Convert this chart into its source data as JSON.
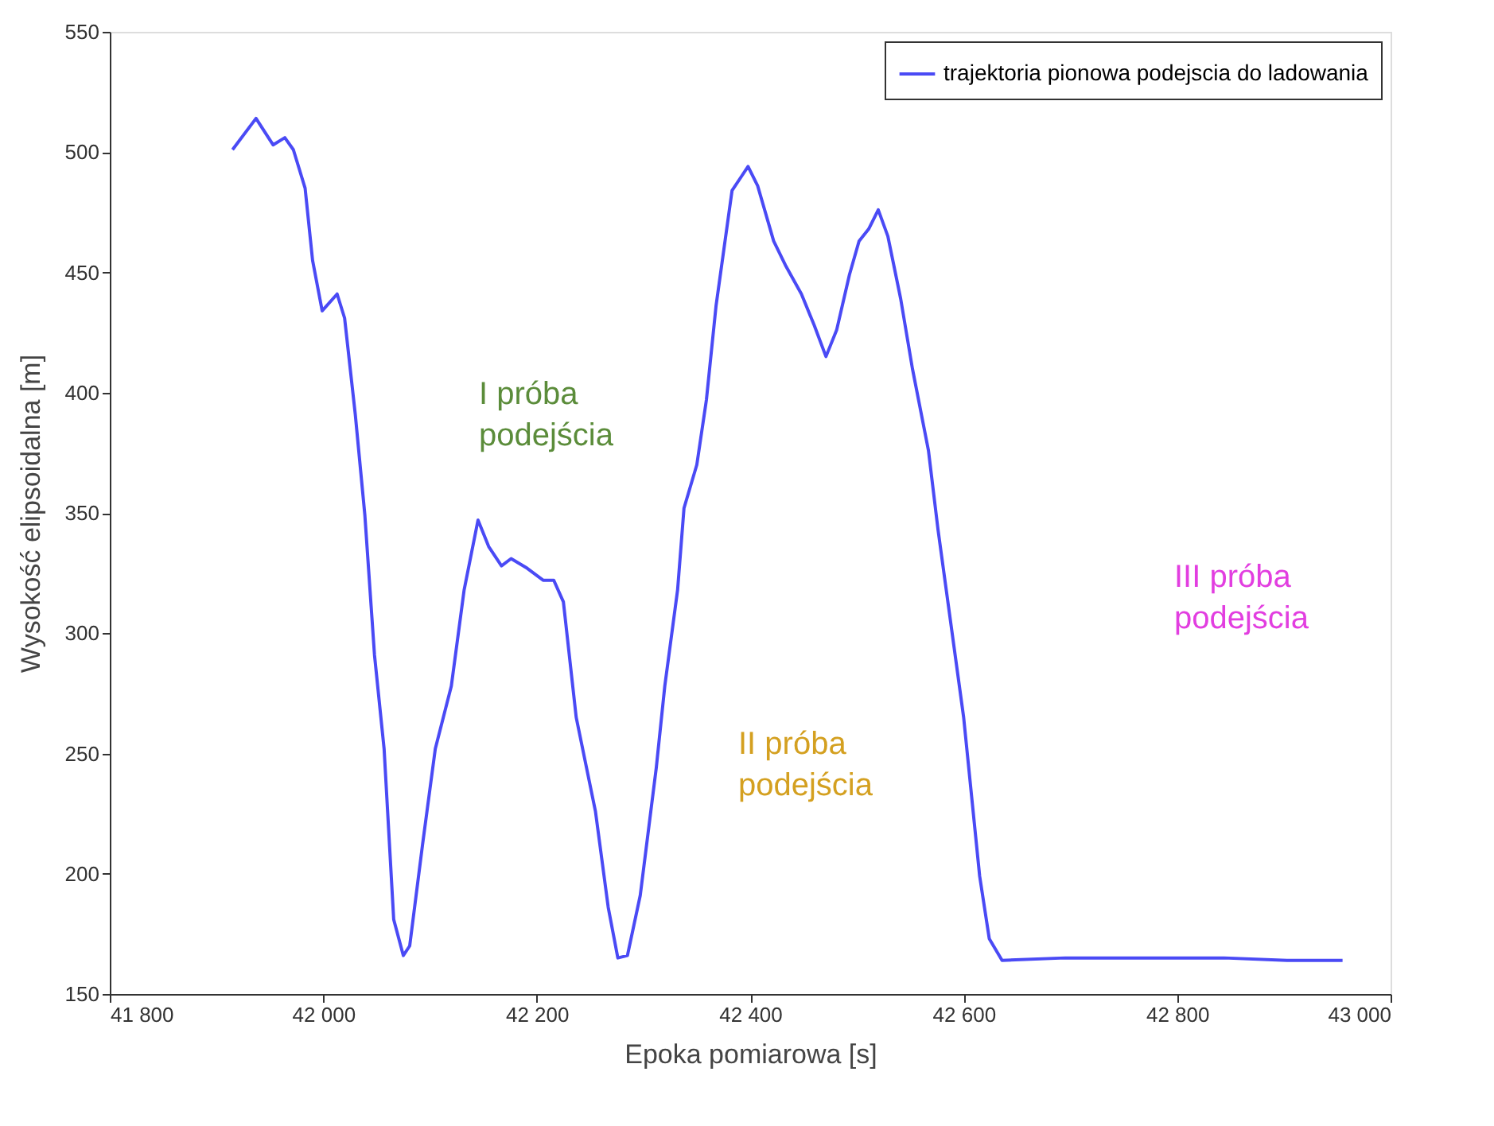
{
  "chart_data": {
    "type": "line",
    "xlabel": "Epoka pomiarowa [s]",
    "ylabel": "Wysokość elipsoidalna [m]",
    "xlim": [
      41800,
      43000
    ],
    "ylim": [
      150,
      550
    ],
    "xticks": [
      {
        "value": 41800,
        "label": "41 800"
      },
      {
        "value": 42000,
        "label": "42 000"
      },
      {
        "value": 42200,
        "label": "42 200"
      },
      {
        "value": 42400,
        "label": "42 400"
      },
      {
        "value": 42600,
        "label": "42 600"
      },
      {
        "value": 42800,
        "label": "42 800"
      },
      {
        "value": 43000,
        "label": "43 000"
      }
    ],
    "yticks": [
      150,
      200,
      250,
      300,
      350,
      400,
      450,
      500,
      550
    ],
    "grid": false,
    "legend": "top right",
    "marker": "none",
    "line_style": "solid",
    "series": [
      {
        "name": "trajektoria pionowa podejscia do ladowania",
        "color": "#4a4af5",
        "x": [
          41915,
          41937,
          41953,
          41964,
          41972,
          41983,
          41990,
          41999,
          42013,
          42020,
          42030,
          42039,
          42048,
          42057,
          42066,
          42075,
          42081,
          42093,
          42105,
          42120,
          42132,
          42145,
          42155,
          42167,
          42176,
          42191,
          42206,
          42216,
          42225,
          42237,
          42255,
          42267,
          42276,
          42285,
          42297,
          42312,
          42320,
          42332,
          42338,
          42350,
          42359,
          42368,
          42383,
          42392,
          42398,
          42407,
          42422,
          42433,
          42448,
          42460,
          42471,
          42481,
          42493,
          42502,
          42511,
          42520,
          42529,
          42541,
          42552,
          42567,
          42576,
          42600,
          42615,
          42624,
          42636,
          42695,
          42770,
          42844,
          42903,
          42955
        ],
        "values": [
          501,
          514,
          503,
          506,
          501,
          485,
          455,
          434,
          441,
          431,
          391,
          349,
          291,
          252,
          181,
          166,
          170,
          212,
          252,
          278,
          318,
          347,
          336,
          328,
          331,
          327,
          322,
          322,
          313,
          265,
          226,
          186,
          165,
          166,
          191,
          244,
          278,
          318,
          352,
          370,
          397,
          436,
          484,
          490,
          494,
          486,
          463,
          453,
          441,
          428,
          415,
          426,
          449,
          463,
          468,
          476,
          465,
          439,
          410,
          376,
          343,
          265,
          199,
          173,
          164,
          165,
          165,
          165,
          164,
          164
        ]
      }
    ],
    "annotations": [
      "I próba\npodejścia",
      "II próba\npodejścia",
      "III próba\npodejścia"
    ]
  }
}
